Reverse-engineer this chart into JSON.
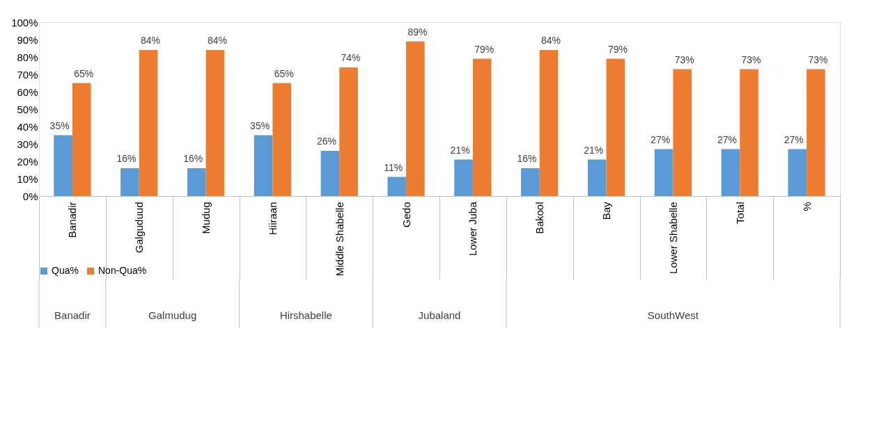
{
  "chart_data": {
    "type": "bar",
    "categories": [
      "Banadir",
      "Galguduud",
      "Mudug",
      "Hiiraan",
      "Middle Shabelle",
      "Gedo",
      "Lower Juba",
      "Bakool",
      "Bay",
      "Lower Shabelle",
      "Total",
      "%"
    ],
    "series": [
      {
        "name": "Qua%",
        "color": "#5b9bd5",
        "values": [
          35,
          16,
          16,
          35,
          26,
          11,
          21,
          16,
          21,
          27,
          27,
          27
        ],
        "value_labels": [
          "35%",
          "16%",
          "16%",
          "35%",
          "26%",
          "11%",
          "21%",
          "16%",
          "21%",
          "27%",
          "27%",
          "27%"
        ]
      },
      {
        "name": "Non-Qua%",
        "color": "#ed7d31",
        "values": [
          65,
          84,
          84,
          65,
          74,
          89,
          79,
          84,
          79,
          73,
          73,
          73
        ],
        "value_labels": [
          "65%",
          "84%",
          "84%",
          "65%",
          "74%",
          "89%",
          "79%",
          "84%",
          "79%",
          "73%",
          "73%",
          "73%"
        ]
      }
    ],
    "ylim": [
      0,
      100
    ],
    "yticks": [
      {
        "value": 0,
        "label": "0%"
      },
      {
        "value": 10,
        "label": "10%"
      },
      {
        "value": 20,
        "label": "20%"
      },
      {
        "value": 30,
        "label": "30%"
      },
      {
        "value": 40,
        "label": "40%"
      },
      {
        "value": 50,
        "label": "50%"
      },
      {
        "value": 60,
        "label": "60%"
      },
      {
        "value": 70,
        "label": "70%"
      },
      {
        "value": 80,
        "label": "80%"
      },
      {
        "value": 90,
        "label": "90%"
      },
      {
        "value": 100,
        "label": "100%"
      }
    ],
    "annotations": [
      "Banadir",
      "Galmudug",
      "Hirshabelle",
      "Jubaland",
      "SouthWest"
    ],
    "grid": false,
    "legend": "bottom"
  }
}
